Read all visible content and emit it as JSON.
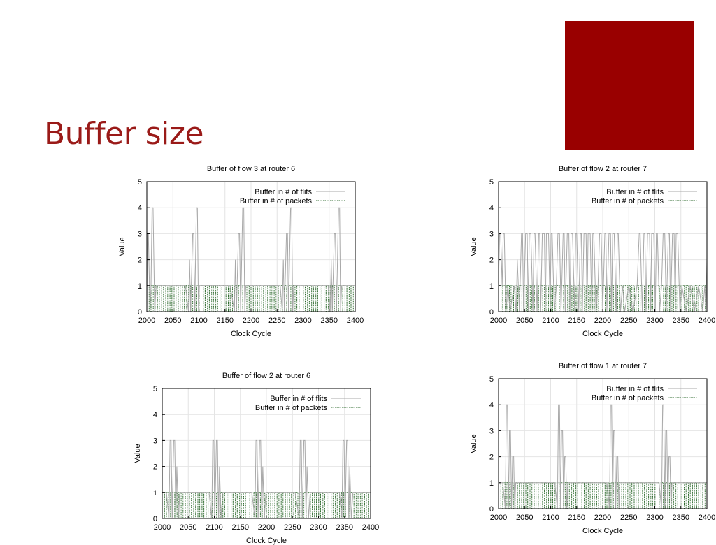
{
  "slide": {
    "title": "Buffer size",
    "accent_color": "#990000"
  },
  "colors": {
    "flits_line": "#a8a8a8",
    "packets_line": "#2f6b2f",
    "grid": "#e4e4e4"
  },
  "chart_data": [
    {
      "type": "line",
      "title": "Buffer of flow 3 at router 6",
      "xlabel": "Clock Cycle",
      "ylabel": "Value",
      "xlim": [
        2000,
        2400
      ],
      "ylim": [
        0,
        5
      ],
      "xticks": [
        2000,
        2050,
        2100,
        2150,
        2200,
        2250,
        2300,
        2350,
        2400
      ],
      "yticks": [
        0,
        1,
        2,
        3,
        4,
        5
      ],
      "grid": true,
      "legend": "top-right",
      "series": [
        {
          "name": "Buffer in # of flits",
          "style": "solid",
          "x": [
            2000,
            2001,
            2003,
            2006,
            2008,
            2010,
            2012,
            2015,
            2018,
            2026,
            2034,
            2042,
            2050,
            2058,
            2066,
            2074,
            2080,
            2082,
            2084,
            2088,
            2090,
            2092,
            2095,
            2097,
            2099,
            2101,
            2104,
            2112,
            2120,
            2128,
            2136,
            2144,
            2152,
            2160,
            2168,
            2170,
            2172,
            2176,
            2178,
            2180,
            2184,
            2186,
            2188,
            2190,
            2192,
            2200,
            2208,
            2216,
            2224,
            2232,
            2240,
            2248,
            2256,
            2260,
            2262,
            2264,
            2268,
            2270,
            2272,
            2276,
            2278,
            2280,
            2282,
            2284,
            2292,
            2300,
            2308,
            2316,
            2324,
            2332,
            2340,
            2348,
            2352,
            2354,
            2356,
            2360,
            2362,
            2364,
            2368,
            2370,
            2372,
            2374,
            2376,
            2384,
            2392,
            2400
          ],
          "y": [
            0,
            3,
            3,
            0,
            1,
            4,
            4,
            0,
            1,
            1,
            1,
            1,
            1,
            1,
            1,
            1,
            0,
            2,
            0,
            3,
            3,
            0,
            4,
            4,
            0,
            1,
            1,
            1,
            1,
            1,
            1,
            1,
            1,
            1,
            0,
            2,
            0,
            3,
            3,
            0,
            4,
            4,
            0,
            1,
            1,
            1,
            1,
            1,
            1,
            1,
            1,
            1,
            1,
            0,
            2,
            0,
            3,
            3,
            0,
            4,
            4,
            0,
            1,
            1,
            1,
            1,
            1,
            1,
            1,
            1,
            1,
            1,
            0,
            2,
            0,
            3,
            3,
            0,
            4,
            4,
            0,
            1,
            1,
            1,
            1,
            1
          ]
        },
        {
          "name": "Buffer in # of packets",
          "style": "dotted",
          "pattern": "square",
          "period": 8,
          "duty": 0.55,
          "low": 0,
          "high": 1
        }
      ]
    },
    {
      "type": "line",
      "title": "Buffer of flow 2 at router 7",
      "xlabel": "Clock Cycle",
      "ylabel": "Value",
      "xlim": [
        2000,
        2400
      ],
      "ylim": [
        0,
        5
      ],
      "xticks": [
        2000,
        2050,
        2100,
        2150,
        2200,
        2250,
        2300,
        2350,
        2400
      ],
      "yticks": [
        0,
        1,
        2,
        3,
        4,
        5
      ],
      "grid": true,
      "legend": "top-right",
      "series": [
        {
          "name": "Buffer in # of flits",
          "style": "solid",
          "x": [
            2000,
            2002,
            2004,
            2007,
            2009,
            2011,
            2014,
            2018,
            2022,
            2030,
            2034,
            2036,
            2040,
            2044,
            2046,
            2048,
            2052,
            2055,
            2057,
            2059,
            2062,
            2066,
            2068,
            2070,
            2074,
            2077,
            2079,
            2081,
            2084,
            2088,
            2090,
            2092,
            2096,
            2099,
            2101,
            2103,
            2107,
            2111,
            2114,
            2117,
            2120,
            2124,
            2126,
            2128,
            2132,
            2135,
            2137,
            2139,
            2142,
            2146,
            2148,
            2150,
            2154,
            2157,
            2159,
            2161,
            2164,
            2168,
            2170,
            2172,
            2176,
            2179,
            2181,
            2183,
            2187,
            2191,
            2194,
            2197,
            2200,
            2204,
            2206,
            2208,
            2212,
            2215,
            2217,
            2219,
            2222,
            2226,
            2228,
            2230,
            2234,
            2238,
            2242,
            2250,
            2258,
            2266,
            2270,
            2272,
            2276,
            2279,
            2281,
            2283,
            2286,
            2290,
            2292,
            2294,
            2298,
            2301,
            2303,
            2305,
            2309,
            2313,
            2316,
            2319,
            2322,
            2326,
            2328,
            2330,
            2334,
            2337,
            2339,
            2341,
            2344,
            2348,
            2352,
            2360,
            2368,
            2376,
            2384,
            2392,
            2396,
            2398,
            2400
          ],
          "y": [
            1,
            3,
            3,
            1,
            3,
            3,
            0,
            1,
            0,
            1,
            0,
            2,
            0,
            3,
            3,
            0,
            3,
            3,
            0,
            3,
            3,
            0,
            3,
            3,
            0,
            3,
            3,
            0,
            3,
            3,
            0,
            3,
            3,
            0,
            3,
            3,
            0,
            1,
            3,
            3,
            0,
            3,
            3,
            0,
            3,
            3,
            0,
            3,
            3,
            0,
            3,
            3,
            0,
            3,
            3,
            0,
            3,
            3,
            0,
            3,
            3,
            0,
            3,
            3,
            0,
            1,
            3,
            3,
            0,
            3,
            3,
            0,
            3,
            3,
            0,
            3,
            3,
            0,
            3,
            3,
            0,
            1,
            0,
            1,
            0,
            1,
            3,
            3,
            0,
            3,
            3,
            0,
            3,
            3,
            0,
            3,
            3,
            0,
            3,
            3,
            0,
            1,
            3,
            3,
            0,
            3,
            3,
            0,
            3,
            3,
            0,
            3,
            3,
            0,
            1,
            0,
            1,
            0,
            1,
            0,
            1,
            0,
            2
          ]
        },
        {
          "name": "Buffer in # of packets",
          "style": "dotted",
          "pattern": "square",
          "period": 8,
          "duty": 0.6,
          "low": 0,
          "high": 1
        }
      ]
    },
    {
      "type": "line",
      "title": "Buffer of flow 2 at router 6",
      "xlabel": "Clock Cycle",
      "ylabel": "Value",
      "xlim": [
        2000,
        2400
      ],
      "ylim": [
        0,
        5
      ],
      "xticks": [
        2000,
        2050,
        2100,
        2150,
        2200,
        2250,
        2300,
        2350,
        2400
      ],
      "yticks": [
        0,
        1,
        2,
        3,
        4,
        5
      ],
      "grid": true,
      "legend": "top-right",
      "series": [
        {
          "name": "Buffer in # of flits",
          "style": "solid",
          "x": [
            2000,
            2008,
            2013,
            2015,
            2017,
            2019,
            2022,
            2024,
            2026,
            2028,
            2031,
            2034,
            2042,
            2050,
            2058,
            2066,
            2074,
            2082,
            2090,
            2095,
            2097,
            2099,
            2101,
            2104,
            2106,
            2108,
            2110,
            2113,
            2116,
            2124,
            2132,
            2140,
            2148,
            2156,
            2164,
            2172,
            2178,
            2180,
            2182,
            2184,
            2187,
            2189,
            2191,
            2193,
            2196,
            2199,
            2207,
            2215,
            2223,
            2231,
            2239,
            2247,
            2255,
            2263,
            2265,
            2267,
            2269,
            2272,
            2274,
            2276,
            2278,
            2281,
            2284,
            2292,
            2300,
            2308,
            2316,
            2324,
            2332,
            2340,
            2345,
            2347,
            2349,
            2351,
            2354,
            2356,
            2358,
            2360,
            2363,
            2366,
            2374,
            2382,
            2390,
            2400
          ],
          "y": [
            1,
            1,
            0,
            3,
            3,
            0,
            3,
            3,
            0,
            2,
            0,
            1,
            1,
            1,
            1,
            1,
            1,
            1,
            1,
            0,
            3,
            3,
            0,
            3,
            3,
            0,
            2,
            0,
            1,
            1,
            1,
            1,
            1,
            1,
            1,
            1,
            0,
            3,
            3,
            0,
            3,
            3,
            0,
            2,
            0,
            1,
            1,
            1,
            1,
            1,
            1,
            1,
            1,
            0,
            3,
            3,
            0,
            3,
            3,
            0,
            2,
            0,
            1,
            1,
            1,
            1,
            1,
            1,
            1,
            1,
            0,
            3,
            3,
            0,
            3,
            3,
            0,
            2,
            0,
            1,
            1,
            1,
            1,
            1
          ]
        },
        {
          "name": "Buffer in # of packets",
          "style": "dotted",
          "pattern": "square",
          "period": 8,
          "duty": 0.55,
          "low": 0,
          "high": 1
        }
      ]
    },
    {
      "type": "line",
      "title": "Buffer of flow 1 at router 7",
      "xlabel": "Clock Cycle",
      "ylabel": "Value",
      "xlim": [
        2000,
        2400
      ],
      "ylim": [
        0,
        5
      ],
      "xticks": [
        2000,
        2050,
        2100,
        2150,
        2200,
        2250,
        2300,
        2350,
        2400
      ],
      "yticks": [
        0,
        1,
        2,
        3,
        4,
        5
      ],
      "grid": true,
      "legend": "top-right",
      "series": [
        {
          "name": "Buffer in # of flits",
          "style": "solid",
          "x": [
            2000,
            2008,
            2013,
            2015,
            2017,
            2019,
            2021,
            2023,
            2025,
            2027,
            2029,
            2031,
            2033,
            2036,
            2044,
            2052,
            2060,
            2068,
            2076,
            2084,
            2092,
            2100,
            2108,
            2113,
            2115,
            2117,
            2119,
            2121,
            2123,
            2125,
            2127,
            2129,
            2131,
            2133,
            2136,
            2144,
            2152,
            2160,
            2168,
            2176,
            2184,
            2192,
            2200,
            2208,
            2213,
            2215,
            2217,
            2219,
            2221,
            2223,
            2225,
            2227,
            2229,
            2231,
            2233,
            2236,
            2244,
            2252,
            2260,
            2268,
            2276,
            2284,
            2292,
            2300,
            2308,
            2313,
            2315,
            2317,
            2319,
            2321,
            2323,
            2325,
            2327,
            2329,
            2331,
            2333,
            2336,
            2344,
            2352,
            2360,
            2368,
            2376,
            2384,
            2392,
            2400
          ],
          "y": [
            1,
            1,
            0,
            4,
            4,
            0,
            3,
            3,
            0,
            2,
            2,
            0,
            1,
            1,
            1,
            1,
            1,
            1,
            1,
            1,
            1,
            1,
            1,
            0,
            4,
            4,
            0,
            3,
            3,
            0,
            2,
            2,
            0,
            1,
            1,
            1,
            1,
            1,
            1,
            1,
            1,
            1,
            1,
            1,
            0,
            4,
            4,
            0,
            3,
            3,
            0,
            2,
            2,
            0,
            1,
            1,
            1,
            1,
            1,
            1,
            1,
            1,
            1,
            1,
            1,
            0,
            4,
            4,
            0,
            3,
            3,
            0,
            2,
            2,
            0,
            1,
            1,
            1,
            1,
            1,
            1,
            1,
            1,
            1,
            1
          ]
        },
        {
          "name": "Buffer in # of packets",
          "style": "dotted",
          "pattern": "square",
          "period": 8,
          "duty": 0.55,
          "low": 0,
          "high": 1
        }
      ]
    }
  ]
}
